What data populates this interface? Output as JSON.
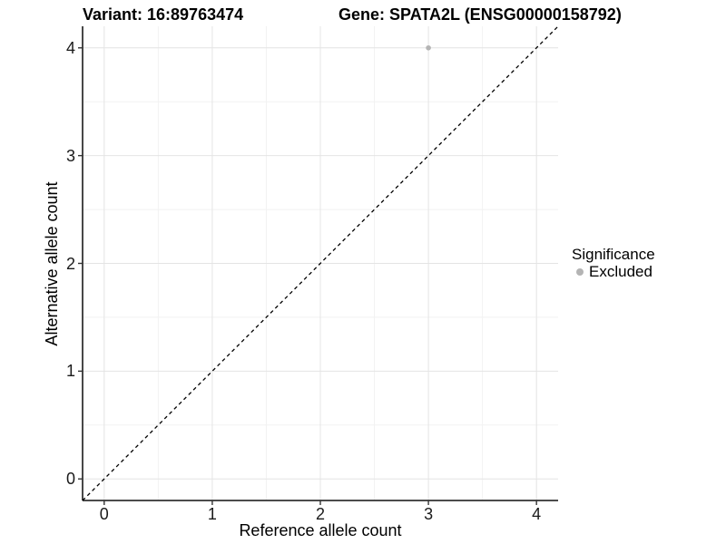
{
  "chart_data": {
    "type": "scatter",
    "titles": {
      "left": "Variant: 16:89763474",
      "right": "Gene: SPATA2L (ENSG00000158792)"
    },
    "xlabel": "Reference allele count",
    "ylabel": "Alternative allele count",
    "xlim": [
      -0.2,
      4.2
    ],
    "ylim": [
      -0.2,
      4.2
    ],
    "x_ticks": [
      0,
      1,
      2,
      3,
      4
    ],
    "y_ticks": [
      0,
      1,
      2,
      3,
      4
    ],
    "x_minor_ticks": [
      0.5,
      1.5,
      2.5,
      3.5
    ],
    "y_minor_ticks": [
      0.5,
      1.5,
      2.5,
      3.5
    ],
    "grid": "major and minor gridlines on white panel, left and bottom axis lines only",
    "points": [
      {
        "x": 3,
        "y": 4,
        "series": "Excluded"
      }
    ],
    "reference_line": {
      "slope": 1,
      "intercept": 0,
      "style": "dashed",
      "color": "#000000",
      "note": "identity line y = x, drawn corner to corner of panel"
    },
    "legend": {
      "position": "right",
      "title": "Significance",
      "entries": [
        {
          "label": "Excluded",
          "color": "#b4b4b4"
        }
      ]
    },
    "colors": {
      "point": "#b4b4b4",
      "grid_major": "#e4e4e4",
      "grid_minor": "#f2f2f2",
      "axis_line": "#333333",
      "tick_mark": "#333333",
      "text": "#000000",
      "background": "#ffffff"
    }
  }
}
